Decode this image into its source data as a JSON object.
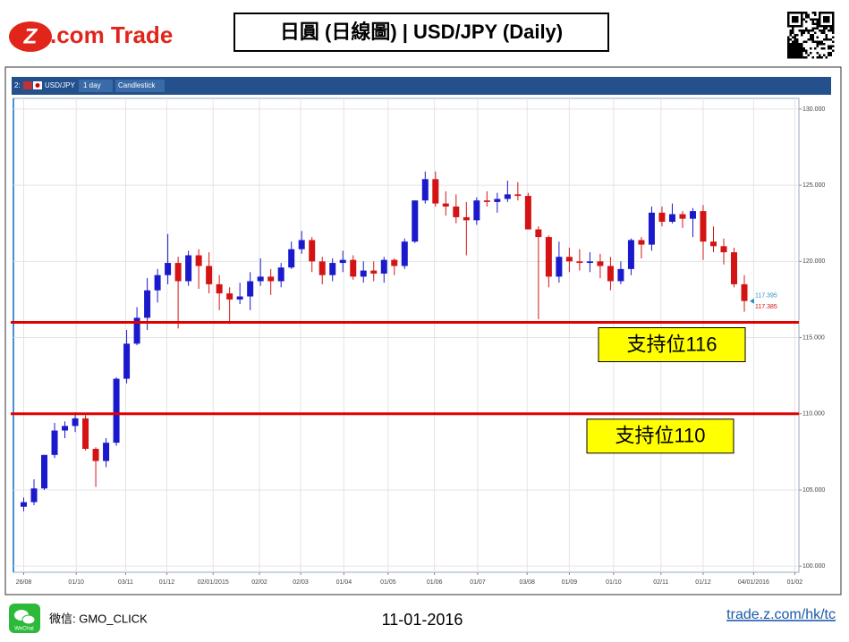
{
  "header": {
    "logo_mark": "Z",
    "logo_text": ".com Trade",
    "title": "日圓 (日線圖) | USD/JPY (Daily)"
  },
  "toolbar": {
    "index": "2:",
    "symbol": "USD/JPY",
    "period": "1 day",
    "style": "Candlestick"
  },
  "footer": {
    "wechat_icon": "WeChat",
    "wechat": "微信: GMO_CLICK",
    "date": "11-01-2016",
    "url": "trade.z.com/hk/tc"
  },
  "chart_data": {
    "type": "candlestick",
    "up_color": "#1a1acc",
    "down_color": "#d41414",
    "grid": true,
    "xlim": [
      -1,
      75.3
    ],
    "ylim": [
      99.6,
      130.7
    ],
    "xticks": [
      {
        "value": 0,
        "label": "26/08"
      },
      {
        "value": 5.1,
        "label": "01/10"
      },
      {
        "value": 9.9,
        "label": "03/11"
      },
      {
        "value": 13.9,
        "label": "01/12"
      },
      {
        "value": 18.4,
        "label": "02/01/2015"
      },
      {
        "value": 22.9,
        "label": "02/02"
      },
      {
        "value": 26.9,
        "label": "02/03"
      },
      {
        "value": 31.1,
        "label": "01/04"
      },
      {
        "value": 35.4,
        "label": "01/05"
      },
      {
        "value": 39.9,
        "label": "01/06"
      },
      {
        "value": 44.1,
        "label": "01/07"
      },
      {
        "value": 48.9,
        "label": "03/08"
      },
      {
        "value": 53,
        "label": "01/09"
      },
      {
        "value": 57.3,
        "label": "01/10"
      },
      {
        "value": 61.9,
        "label": "02/11"
      },
      {
        "value": 66,
        "label": "01/12"
      },
      {
        "value": 70.9,
        "label": "04/01/2016"
      },
      {
        "value": 74.9,
        "label": "01/02"
      }
    ],
    "yticks": [
      {
        "value": 100,
        "label": "100.000"
      },
      {
        "value": 105,
        "label": "105.000"
      },
      {
        "value": 110,
        "label": "110.000"
      },
      {
        "value": 115,
        "label": "115.000"
      },
      {
        "value": 120,
        "label": "120.000"
      },
      {
        "value": 125,
        "label": "125.000"
      },
      {
        "value": 130,
        "label": "130.000"
      }
    ],
    "x": [
      0,
      1,
      2,
      3,
      4,
      5,
      6,
      7,
      8,
      9,
      10,
      11,
      12,
      13,
      14,
      15,
      16,
      17,
      18,
      19,
      20,
      21,
      22,
      23,
      24,
      25,
      26,
      27,
      28,
      29,
      30,
      31,
      32,
      33,
      34,
      35,
      36,
      37,
      38,
      39,
      40,
      41,
      42,
      43,
      44,
      45,
      46,
      47,
      48,
      49,
      50,
      51,
      52,
      53,
      54,
      55,
      56,
      57,
      58,
      59,
      60,
      61,
      62,
      63,
      64,
      65,
      66,
      67,
      68,
      69,
      70
    ],
    "open": [
      103.9,
      104.2,
      105.1,
      107.3,
      108.9,
      109.2,
      109.7,
      107.7,
      106.9,
      108.1,
      112.3,
      114.6,
      116.3,
      118.1,
      119.1,
      119.9,
      118.7,
      120.4,
      119.7,
      118.5,
      117.9,
      117.5,
      117.7,
      118.7,
      119.0,
      118.7,
      119.6,
      120.8,
      121.4,
      120.0,
      119.1,
      119.9,
      120.1,
      119.0,
      119.4,
      119.2,
      120.1,
      119.7,
      121.3,
      124.0,
      125.4,
      123.8,
      123.6,
      122.9,
      122.7,
      124.0,
      123.9,
      124.1,
      124.4,
      124.3,
      122.1,
      121.6,
      119.0,
      120.3,
      120.0,
      119.9,
      120.0,
      119.7,
      118.7,
      119.5,
      121.4,
      121.1,
      123.2,
      122.6,
      123.1,
      122.8,
      123.3,
      121.3,
      121.0,
      120.6,
      118.5
    ],
    "high": [
      104.5,
      105.7,
      107.3,
      109.4,
      109.5,
      110.1,
      109.9,
      107.8,
      108.4,
      112.4,
      115.5,
      117.0,
      118.9,
      119.5,
      121.8,
      120.3,
      120.7,
      120.8,
      120.6,
      119.1,
      118.3,
      118.6,
      119.3,
      120.2,
      119.5,
      119.9,
      121.3,
      122.0,
      121.6,
      120.3,
      120.2,
      120.7,
      120.4,
      120.0,
      120.0,
      120.3,
      120.2,
      121.5,
      124.0,
      125.9,
      125.9,
      124.6,
      124.4,
      123.9,
      124.2,
      124.6,
      124.5,
      125.3,
      125.2,
      124.5,
      122.3,
      121.7,
      121.3,
      120.9,
      120.8,
      120.6,
      120.5,
      120.3,
      120.0,
      121.5,
      121.6,
      123.6,
      123.6,
      123.8,
      123.3,
      123.5,
      123.7,
      122.3,
      121.5,
      120.9,
      119.1
    ],
    "low": [
      103.6,
      104.0,
      105.0,
      107.1,
      108.4,
      108.8,
      107.6,
      105.2,
      106.5,
      107.9,
      112.0,
      114.5,
      115.5,
      117.3,
      118.5,
      115.6,
      118.4,
      118.2,
      117.9,
      116.8,
      115.9,
      117.2,
      116.8,
      118.4,
      117.8,
      118.3,
      119.5,
      120.5,
      119.3,
      118.5,
      118.7,
      119.3,
      118.8,
      118.6,
      118.7,
      118.6,
      119.1,
      119.5,
      121.2,
      123.8,
      123.6,
      123.0,
      122.5,
      120.4,
      122.4,
      123.6,
      123.2,
      123.9,
      124.0,
      122.1,
      116.2,
      118.3,
      118.6,
      119.3,
      119.4,
      119.3,
      118.9,
      118.1,
      118.5,
      119.1,
      120.2,
      120.7,
      122.3,
      122.5,
      122.2,
      121.6,
      120.1,
      120.6,
      119.8,
      118.3,
      116.7
    ],
    "close": [
      104.2,
      105.1,
      107.3,
      108.9,
      109.2,
      109.7,
      107.7,
      106.9,
      108.1,
      112.3,
      114.6,
      116.3,
      118.1,
      119.1,
      119.9,
      118.7,
      120.4,
      119.7,
      118.5,
      117.9,
      117.5,
      117.7,
      118.7,
      119.0,
      118.7,
      119.6,
      120.8,
      121.4,
      120.0,
      119.1,
      119.9,
      120.1,
      119.0,
      119.4,
      119.2,
      120.1,
      119.7,
      121.3,
      124.0,
      125.4,
      123.8,
      123.6,
      122.9,
      122.7,
      124.0,
      123.9,
      124.1,
      124.4,
      124.3,
      122.1,
      121.6,
      119.0,
      120.3,
      120.0,
      119.9,
      120.0,
      119.7,
      118.7,
      119.5,
      121.4,
      121.1,
      123.2,
      122.6,
      123.1,
      122.8,
      123.3,
      121.3,
      121.0,
      120.6,
      118.5,
      117.4
    ],
    "last_prices": [
      {
        "value": 117.395,
        "color": "#2a8fc0"
      },
      {
        "value": 117.385,
        "color": "#d41414"
      }
    ],
    "support_lines": [
      {
        "value": 116,
        "label": "支持位116",
        "color": "#e00000"
      },
      {
        "value": 110,
        "label": "支持位110",
        "color": "#e00000"
      }
    ]
  }
}
